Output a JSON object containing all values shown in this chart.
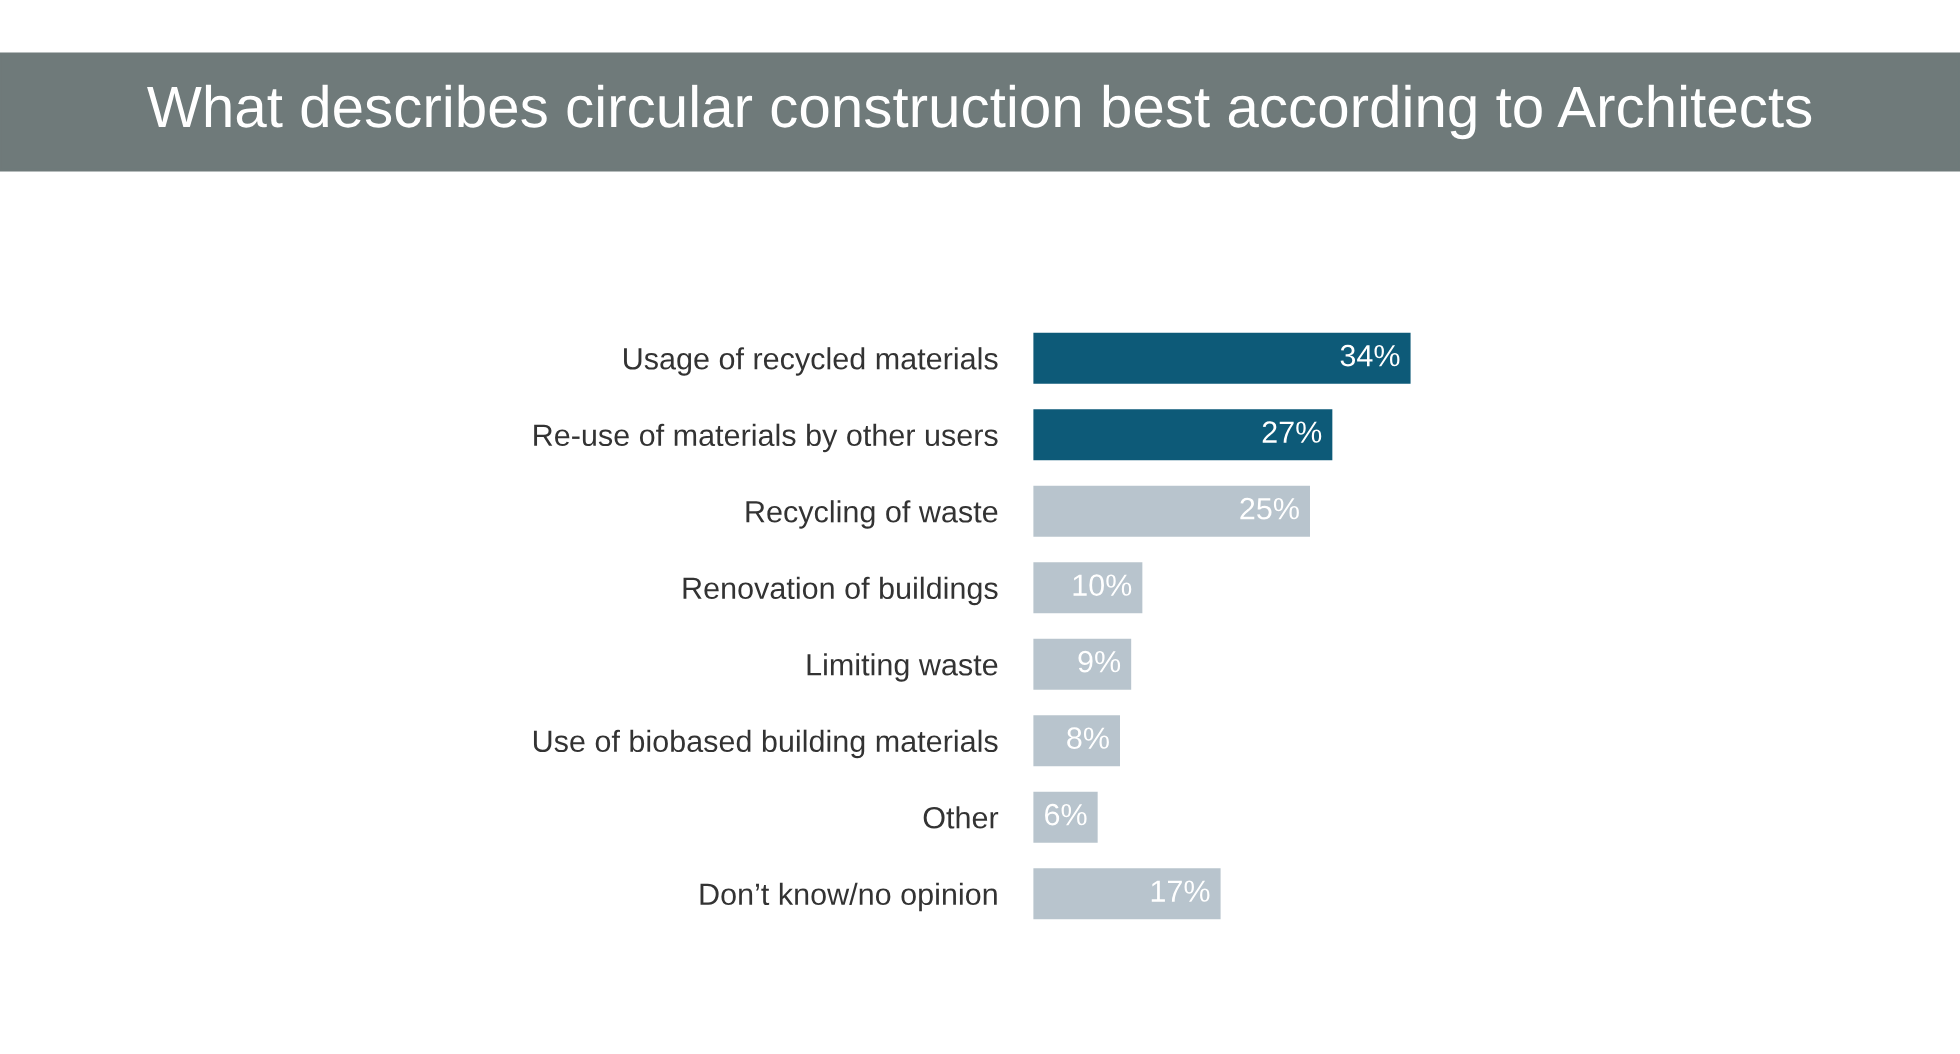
{
  "chart_data": {
    "type": "bar",
    "orientation": "horizontal",
    "title": "What describes circular construction best according to Architects",
    "categories": [
      "Usage of recycled materials",
      "Re-use of materials by other users",
      "Recycling of waste",
      "Renovation of buildings",
      "Limiting waste",
      "Use of biobased building materials",
      "Other",
      "Don’t know/no opinion"
    ],
    "values": [
      34,
      27,
      25,
      10,
      9,
      8,
      6,
      17
    ],
    "value_labels": [
      "34%",
      "27%",
      "25%",
      "10%",
      "9%",
      "8%",
      "6%",
      "17%"
    ],
    "colors": [
      "#0d5a78",
      "#0d5a78",
      "#b8c4cd",
      "#b8c4cd",
      "#b8c4cd",
      "#b8c4cd",
      "#b8c4cd",
      "#b8c4cd"
    ],
    "grid": false,
    "legend": false
  }
}
